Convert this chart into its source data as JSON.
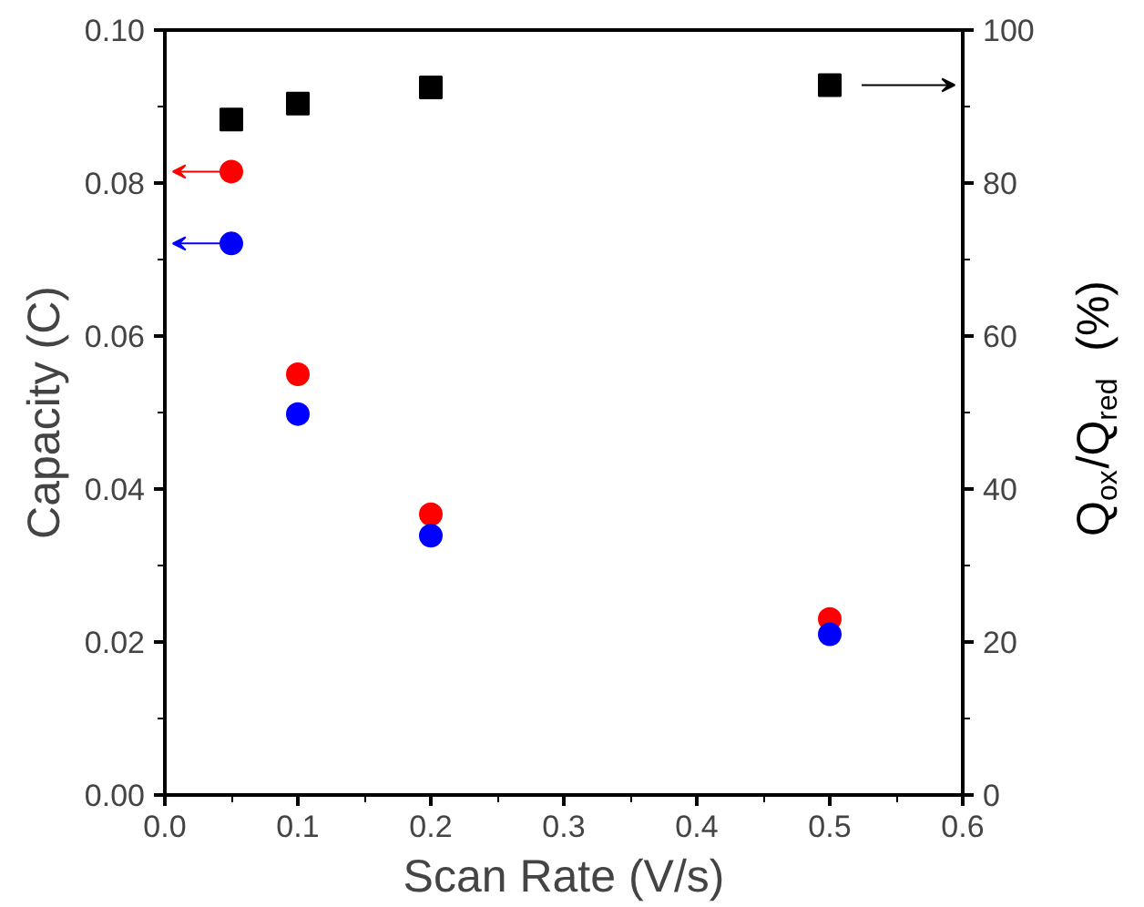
{
  "chart_data": {
    "type": "scatter",
    "xlabel": "Scan Rate (V/s)",
    "ylabel": "Capacity (C)",
    "y2label": "Q$_{ox}$/Q$_{red}$ (%)",
    "x": [
      0.05,
      0.1,
      0.2,
      0.5
    ],
    "series": [
      {
        "color": "#ff0000",
        "marker": "circle",
        "axis": "y",
        "values": [
          0.0815,
          0.055,
          0.0367,
          0.023
        ]
      },
      {
        "color": "#0000ff",
        "marker": "circle",
        "axis": "y",
        "values": [
          0.0721,
          0.0498,
          0.0339,
          0.021
        ]
      },
      {
        "color": "#000000",
        "marker": "square",
        "axis": "y2",
        "values": [
          88.3,
          90.4,
          92.5,
          92.8
        ]
      }
    ],
    "xlim": [
      0.0,
      0.6
    ],
    "xticks": [
      {
        "value": 0.0,
        "label": "0.0"
      },
      0.1,
      0.2,
      0.3,
      0.4,
      0.5,
      0.6
    ],
    "ylim": [
      0.0,
      0.1
    ],
    "yticks": [
      {
        "value": 0.0,
        "label": "0.00"
      },
      {
        "value": 0.02,
        "label": "0.02"
      },
      {
        "value": 0.04,
        "label": "0.04"
      },
      {
        "value": 0.06,
        "label": "0.06"
      },
      {
        "value": 0.08,
        "label": "0.08"
      },
      {
        "value": 0.1,
        "label": "0.10"
      }
    ],
    "y2lim": [
      0,
      100
    ],
    "y2ticks": [
      0,
      20,
      40,
      60,
      80,
      100
    ],
    "grid": false
  }
}
